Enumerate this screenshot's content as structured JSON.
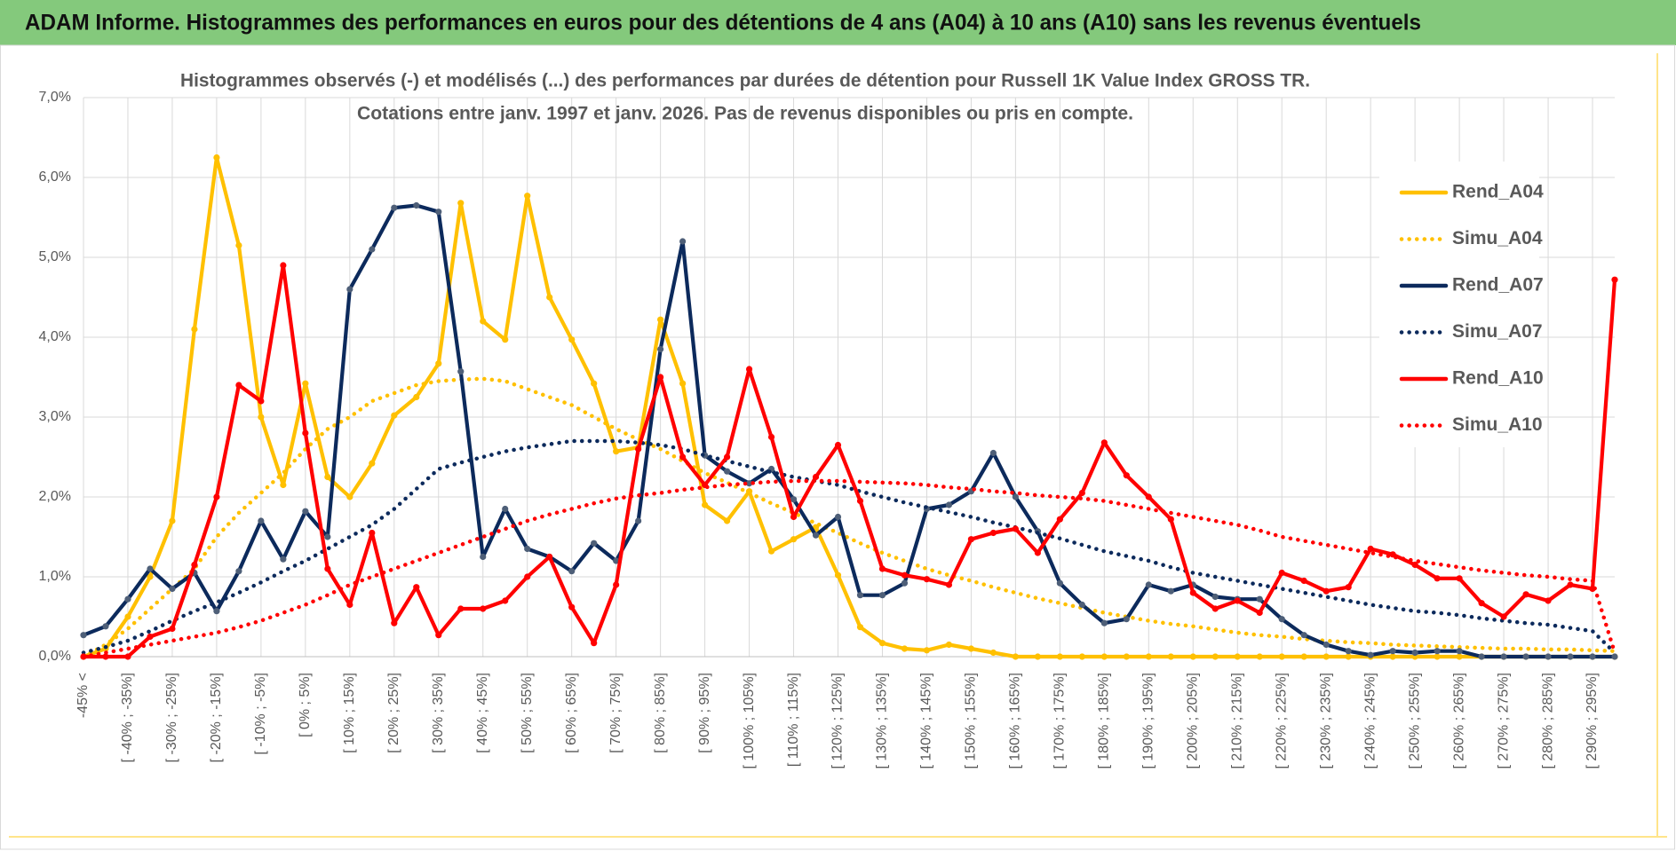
{
  "header": {
    "title": "ADAM Informe. Histogrammes des performances en euros pour des détentions de 4 ans (A04) à 10 ans (A10) sans les revenus éventuels"
  },
  "chart_data": {
    "type": "line",
    "title": "Histogrammes observés (-) et modélisés (...) des performances par durées de détention pour Russell 1K Value Index GROSS TR.",
    "subtitle": "Cotations entre janv. 1997 et janv. 2026. Pas de revenus disponibles ou pris en compte.",
    "categories": [
      "-45% <",
      null,
      "[ -40% ; -35%]",
      null,
      "[ -30% ; -25%]",
      null,
      "[ -20% ; -15%]",
      null,
      "[ -10% ; -5%]",
      null,
      "[ 0% ; 5%]",
      null,
      "[ 10% ; 15%]",
      null,
      "[ 20% ; 25%]",
      null,
      "[ 30% ; 35%]",
      null,
      "[ 40% ; 45%]",
      null,
      "[ 50% ; 55%]",
      null,
      "[ 60% ; 65%]",
      null,
      "[ 70% ; 75%]",
      null,
      "[ 80% ; 85%]",
      null,
      "[ 90% ; 95%]",
      null,
      "[ 100% ; 105%]",
      null,
      "[ 110% ; 115%]",
      null,
      "[ 120% ; 125%]",
      null,
      "[ 130% ; 135%]",
      null,
      "[ 140% ; 145%]",
      null,
      "[ 150% ; 155%]",
      null,
      "[ 160% ; 165%]",
      null,
      "[ 170% ; 175%]",
      null,
      "[ 180% ; 185%]",
      null,
      "[ 190% ; 195%]",
      null,
      "[ 200% ; 205%]",
      null,
      "[ 210% ; 215%]",
      null,
      "[ 220% ; 225%]",
      null,
      "[ 230% ; 235%]",
      null,
      "[ 240% ; 245%]",
      null,
      "[ 250% ; 255%]",
      null,
      "[ 260% ; 265%]",
      null,
      "[ 270% ; 275%]",
      null,
      "[ 280% ; 285%]",
      null,
      "[ 290% ; 295%]",
      null
    ],
    "series": [
      {
        "name": "Rend_A04",
        "color": "#ffc000",
        "style": "solid",
        "values": [
          0,
          0.1,
          0.5,
          1.0,
          1.7,
          4.1,
          6.25,
          5.15,
          3.0,
          2.15,
          3.42,
          2.25,
          2.0,
          2.42,
          3.02,
          3.25,
          3.67,
          5.68,
          4.2,
          3.97,
          5.77,
          4.5,
          3.97,
          3.42,
          2.57,
          2.62,
          4.22,
          3.42,
          1.9,
          1.7,
          2.07,
          1.32,
          1.47,
          1.62,
          1.02,
          0.37,
          0.17,
          0.1,
          0.08,
          0.15,
          0.1,
          0.05,
          0,
          0,
          0,
          0,
          0,
          0,
          0,
          0,
          0,
          0,
          0,
          0,
          0,
          0,
          0,
          0,
          0,
          0,
          0,
          0,
          0,
          0,
          0,
          0,
          0,
          0,
          0,
          0
        ]
      },
      {
        "name": "Simu_A04",
        "color": "#ffc000",
        "style": "dotted",
        "values": [
          0,
          0.15,
          0.35,
          0.6,
          0.85,
          1.1,
          1.5,
          1.8,
          2.05,
          2.3,
          2.6,
          2.85,
          3.0,
          3.2,
          3.3,
          3.4,
          3.45,
          3.47,
          3.48,
          3.45,
          3.35,
          3.25,
          3.15,
          3.0,
          2.85,
          2.72,
          2.6,
          2.45,
          2.3,
          2.18,
          2.05,
          1.92,
          1.8,
          1.67,
          1.55,
          1.42,
          1.3,
          1.2,
          1.1,
          1.02,
          0.95,
          0.87,
          0.8,
          0.73,
          0.67,
          0.61,
          0.55,
          0.5,
          0.45,
          0.41,
          0.38,
          0.34,
          0.3,
          0.27,
          0.25,
          0.22,
          0.2,
          0.18,
          0.17,
          0.15,
          0.14,
          0.13,
          0.12,
          0.11,
          0.1,
          0.1,
          0.09,
          0.09,
          0.08,
          0.07
        ]
      },
      {
        "name": "Rend_A07",
        "color": "#0c2a5c",
        "style": "solid",
        "values": [
          0.27,
          0.38,
          0.72,
          1.1,
          0.85,
          1.05,
          0.57,
          1.07,
          1.7,
          1.22,
          1.82,
          1.5,
          4.6,
          5.1,
          5.62,
          5.65,
          5.57,
          3.57,
          1.25,
          1.85,
          1.35,
          1.25,
          1.07,
          1.42,
          1.2,
          1.7,
          3.85,
          5.2,
          2.52,
          2.32,
          2.17,
          2.35,
          1.97,
          1.52,
          1.75,
          0.77,
          0.77,
          0.92,
          1.85,
          1.9,
          2.07,
          2.55,
          2.0,
          1.57,
          0.92,
          0.65,
          0.42,
          0.47,
          0.9,
          0.82,
          0.9,
          0.75,
          0.72,
          0.72,
          0.47,
          0.27,
          0.15,
          0.07,
          0.02,
          0.07,
          0.05,
          0.07,
          0.07,
          0,
          0,
          0,
          0,
          0,
          0,
          0
        ]
      },
      {
        "name": "Simu_A07",
        "color": "#0c2a5c",
        "style": "dotted",
        "values": [
          0.05,
          0.12,
          0.2,
          0.32,
          0.45,
          0.57,
          0.68,
          0.8,
          0.93,
          1.07,
          1.2,
          1.35,
          1.5,
          1.65,
          1.85,
          2.1,
          2.35,
          2.43,
          2.5,
          2.57,
          2.62,
          2.66,
          2.7,
          2.7,
          2.7,
          2.68,
          2.65,
          2.6,
          2.52,
          2.45,
          2.38,
          2.31,
          2.25,
          2.2,
          2.15,
          2.07,
          2.0,
          1.93,
          1.87,
          1.81,
          1.75,
          1.68,
          1.62,
          1.55,
          1.48,
          1.4,
          1.32,
          1.26,
          1.2,
          1.12,
          1.05,
          1.0,
          0.95,
          0.9,
          0.85,
          0.8,
          0.75,
          0.7,
          0.65,
          0.61,
          0.57,
          0.55,
          0.52,
          0.48,
          0.45,
          0.42,
          0.4,
          0.36,
          0.32,
          0.05
        ]
      },
      {
        "name": "Rend_A10",
        "color": "#ff0000",
        "style": "solid",
        "values": [
          0,
          0,
          0,
          0.25,
          0.35,
          1.15,
          2.0,
          3.4,
          3.2,
          4.9,
          2.8,
          1.1,
          0.65,
          1.55,
          0.42,
          0.87,
          0.27,
          0.6,
          0.6,
          0.7,
          1.0,
          1.25,
          0.62,
          0.17,
          0.9,
          2.6,
          3.5,
          2.5,
          2.15,
          2.5,
          3.6,
          2.75,
          1.75,
          2.25,
          2.65,
          1.95,
          1.1,
          1.02,
          0.97,
          0.9,
          1.47,
          1.55,
          1.6,
          1.3,
          1.72,
          2.05,
          2.68,
          2.27,
          2.0,
          1.72,
          0.8,
          0.6,
          0.7,
          0.55,
          1.05,
          0.95,
          0.82,
          0.87,
          1.35,
          1.28,
          1.15,
          0.98,
          0.98,
          0.67,
          0.5,
          0.78,
          0.7,
          0.9,
          0.85,
          4.72
        ]
      },
      {
        "name": "Simu_A10",
        "color": "#ff0000",
        "style": "dotted",
        "values": [
          0,
          0.05,
          0.1,
          0.15,
          0.2,
          0.25,
          0.3,
          0.37,
          0.45,
          0.55,
          0.65,
          0.77,
          0.9,
          1.0,
          1.1,
          1.2,
          1.3,
          1.4,
          1.5,
          1.6,
          1.7,
          1.78,
          1.85,
          1.92,
          1.98,
          2.02,
          2.05,
          2.09,
          2.12,
          2.15,
          2.17,
          2.19,
          2.2,
          2.2,
          2.2,
          2.19,
          2.18,
          2.17,
          2.15,
          2.12,
          2.1,
          2.07,
          2.05,
          2.02,
          2.0,
          1.98,
          1.95,
          1.9,
          1.85,
          1.8,
          1.75,
          1.7,
          1.65,
          1.58,
          1.5,
          1.45,
          1.4,
          1.35,
          1.3,
          1.25,
          1.2,
          1.16,
          1.12,
          1.08,
          1.05,
          1.02,
          1.0,
          0.97,
          0.95,
          0.05
        ]
      }
    ],
    "ylim": [
      0,
      7
    ],
    "yticks": [
      {
        "value": 0,
        "label": "0,0%"
      },
      {
        "value": 1,
        "label": "1,0%"
      },
      {
        "value": 2,
        "label": "2,0%"
      },
      {
        "value": 3,
        "label": "3,0%"
      },
      {
        "value": 4,
        "label": "4,0%"
      },
      {
        "value": 5,
        "label": "5,0%"
      },
      {
        "value": 6,
        "label": "6,0%"
      },
      {
        "value": 7,
        "label": "7,0%"
      }
    ],
    "grid": true
  }
}
